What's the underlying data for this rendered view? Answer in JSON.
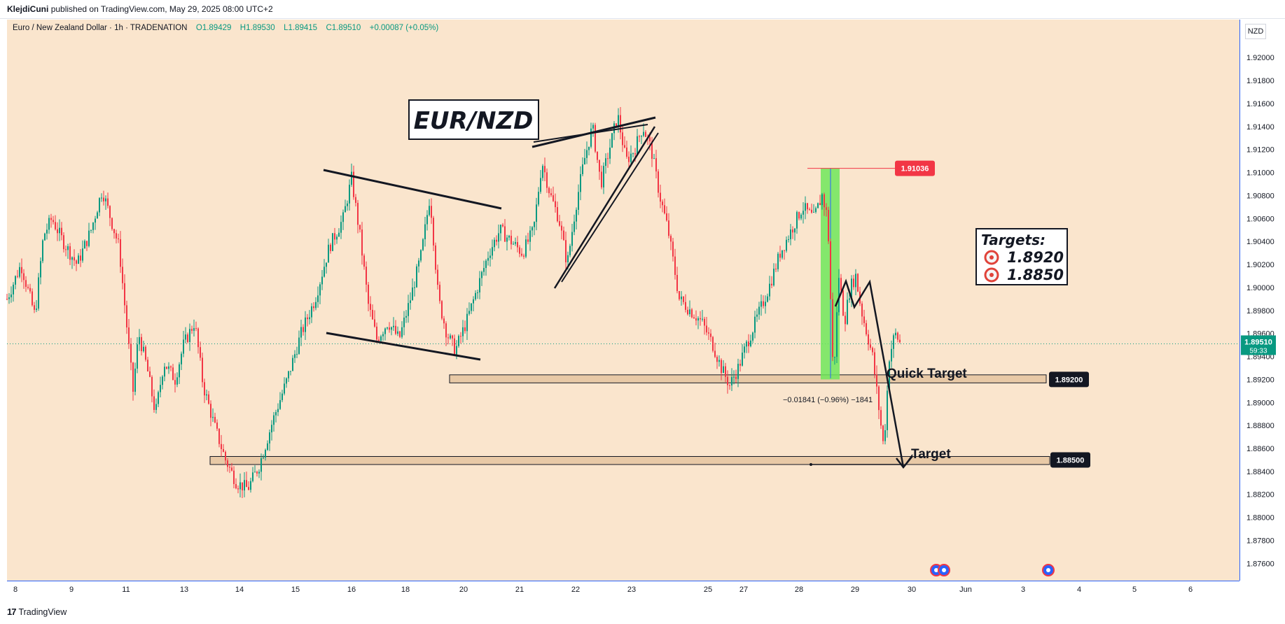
{
  "header": {
    "author": "KlejdiCuni",
    "published_text": "published on TradingView.com, May 29, 2025 08:00 UTC+2"
  },
  "legend": {
    "symbol": "Euro / New Zealand Dollar · 1h · TRADENATION",
    "open": "O1.89429",
    "high": "H1.89530",
    "low": "L1.89415",
    "close": "C1.89510",
    "change": "+0.00087 (+0.05%)"
  },
  "currency": "NZD",
  "footer": {
    "brand": "TradingView"
  },
  "colors": {
    "background": "#fae5cd",
    "up": "#089981",
    "down": "#f23645",
    "accent": "#2962ff",
    "zone": "#e8c9a6"
  },
  "chart_data": {
    "type": "candlestick",
    "title": "EUR/NZD",
    "ylim": [
      1.8745,
      1.9233
    ],
    "y_ticks": [
      "1.92000",
      "1.91800",
      "1.91600",
      "1.91400",
      "1.91200",
      "1.91000",
      "1.90800",
      "1.90600",
      "1.90400",
      "1.90200",
      "1.90000",
      "1.89800",
      "1.89600",
      "1.89400",
      "1.89200",
      "1.89000",
      "1.88800",
      "1.88600",
      "1.88400",
      "1.88200",
      "1.88000",
      "1.87800",
      "1.87600"
    ],
    "x_ticks": [
      "8",
      "9",
      "11",
      "13",
      "14",
      "15",
      "16",
      "18",
      "20",
      "21",
      "22",
      "23",
      "25",
      "27",
      "28",
      "29",
      "30",
      "Jun",
      "3",
      "4",
      "5",
      "6"
    ],
    "price_path": [
      [
        0,
        1.899
      ],
      [
        0.5,
        1.902
      ],
      [
        1,
        1.8975
      ],
      [
        1.3,
        1.9045
      ],
      [
        1.6,
        1.906
      ],
      [
        2,
        1.904
      ],
      [
        2.5,
        1.902
      ],
      [
        3,
        1.905
      ],
      [
        3.4,
        1.9085
      ],
      [
        3.7,
        1.906
      ],
      [
        4,
        1.9035
      ],
      [
        4.3,
        1.896
      ],
      [
        4.5,
        1.891
      ],
      [
        4.7,
        1.896
      ],
      [
        5,
        1.893
      ],
      [
        5.3,
        1.889
      ],
      [
        5.6,
        1.8935
      ],
      [
        6,
        1.892
      ],
      [
        6.3,
        1.895
      ],
      [
        6.7,
        1.897
      ],
      [
        7,
        1.8915
      ],
      [
        7.4,
        1.888
      ],
      [
        7.8,
        1.885
      ],
      [
        8.2,
        1.883
      ],
      [
        8.6,
        1.8825
      ],
      [
        9,
        1.8845
      ],
      [
        9.5,
        1.8885
      ],
      [
        10,
        1.892
      ],
      [
        10.5,
        1.896
      ],
      [
        11,
        1.899
      ],
      [
        11.5,
        1.9035
      ],
      [
        12,
        1.906
      ],
      [
        12.3,
        1.9095
      ],
      [
        12.6,
        1.9045
      ],
      [
        12.9,
        1.8985
      ],
      [
        13.2,
        1.8955
      ],
      [
        13.6,
        1.897
      ],
      [
        14,
        1.8955
      ],
      [
        14.4,
        1.899
      ],
      [
        14.8,
        1.903
      ],
      [
        15.1,
        1.908
      ],
      [
        15.4,
        1.899
      ],
      [
        15.7,
        1.896
      ],
      [
        16,
        1.8945
      ],
      [
        16.4,
        1.897
      ],
      [
        16.8,
        1.9
      ],
      [
        17.2,
        1.903
      ],
      [
        17.6,
        1.905
      ],
      [
        18,
        1.904
      ],
      [
        18.4,
        1.903
      ],
      [
        18.8,
        1.905
      ],
      [
        19.1,
        1.911
      ],
      [
        19.4,
        1.908
      ],
      [
        19.7,
        1.906
      ],
      [
        20,
        1.902
      ],
      [
        20.3,
        1.907
      ],
      [
        20.6,
        1.911
      ],
      [
        20.9,
        1.914
      ],
      [
        21.2,
        1.909
      ],
      [
        21.5,
        1.912
      ],
      [
        21.8,
        1.915
      ],
      [
        22.1,
        1.911
      ],
      [
        22.4,
        1.912
      ],
      [
        22.7,
        1.914
      ],
      [
        23,
        1.912
      ],
      [
        23.3,
        1.908
      ],
      [
        23.6,
        1.905
      ],
      [
        24,
        1.899
      ],
      [
        24.4,
        1.898
      ],
      [
        24.8,
        1.897
      ],
      [
        25.2,
        1.895
      ],
      [
        25.5,
        1.893
      ],
      [
        25.8,
        1.8915
      ],
      [
        26.1,
        1.893
      ],
      [
        26.4,
        1.895
      ],
      [
        26.8,
        1.8975
      ],
      [
        27.2,
        1.9
      ],
      [
        27.6,
        1.903
      ],
      [
        28,
        1.905
      ],
      [
        28.4,
        1.907
      ],
      [
        28.8,
        1.906
      ],
      [
        29.1,
        1.908
      ],
      [
        29.3,
        1.906
      ],
      [
        29.5,
        1.892
      ],
      [
        29.7,
        1.901
      ],
      [
        29.9,
        1.897
      ],
      [
        30.1,
        1.9
      ],
      [
        30.3,
        1.901
      ],
      [
        30.5,
        1.898
      ],
      [
        30.7,
        1.896
      ],
      [
        30.9,
        1.894
      ],
      [
        31.1,
        1.89
      ],
      [
        31.3,
        1.886
      ],
      [
        31.5,
        1.894
      ],
      [
        31.7,
        1.896
      ],
      [
        31.9,
        1.8951
      ]
    ],
    "last_price": "1.89510",
    "countdown": "59:33",
    "marked_levels": [
      {
        "price": 1.91036,
        "label": "1.91036",
        "color": "#f23645"
      },
      {
        "price": 1.892,
        "label": "1.89200",
        "color": "#131722"
      },
      {
        "price": 1.885,
        "label": "1.88500",
        "color": "#131722"
      }
    ],
    "annotations": {
      "targets_title": "Targets:",
      "target_1": "1.8920",
      "target_2": "1.8850",
      "quick_target": "Quick Target",
      "target": "Target",
      "measure": "−0.01841 (−0.96%) −1841"
    }
  }
}
